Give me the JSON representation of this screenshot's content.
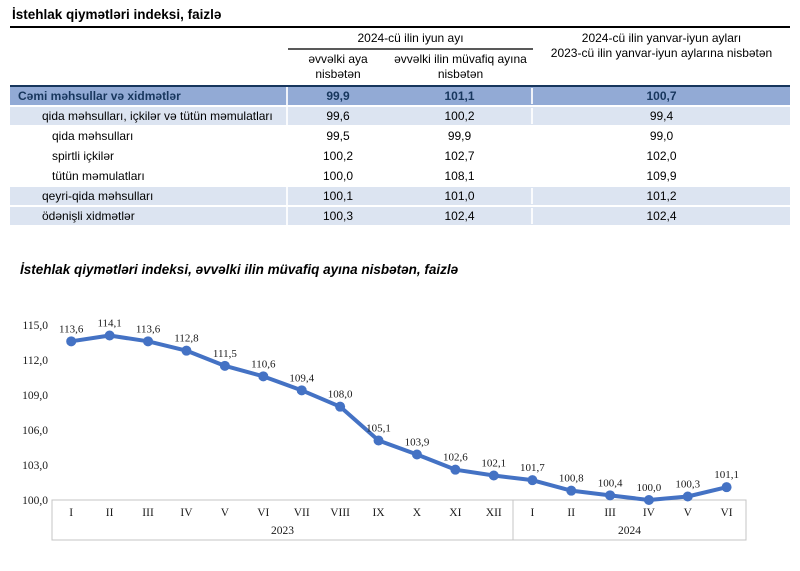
{
  "table": {
    "title": "İstehlak qiymətləri indeksi, faizlə",
    "header": {
      "june_group": "2024-cü ilin iyun ayı",
      "sub_prev_month": "əvvəlki aya nisbətən",
      "sub_prev_year": "əvvəlki ilin müvafiq ayına nisbətən",
      "half_line1": "2024-cü ilin yanvar-iyun ayları",
      "half_line2": "2023-cü ilin yanvar-iyun aylarına nisbətən"
    },
    "rows": [
      {
        "label": "Cəmi məhsullar və xidmətlər",
        "values": [
          "99,9",
          "101,1",
          "100,7"
        ],
        "style": "total",
        "indent": 0
      },
      {
        "label": "qida məhsulları, içkilər və tütün məmulatları",
        "values": [
          "99,6",
          "100,2",
          "99,4"
        ],
        "style": "group",
        "indent": 1
      },
      {
        "label": "qida məhsulları",
        "values": [
          "99,5",
          "99,9",
          "99,0"
        ],
        "style": "plain",
        "indent": 2
      },
      {
        "label": "spirtli içkilər",
        "values": [
          "100,2",
          "102,7",
          "102,0"
        ],
        "style": "plain",
        "indent": 2
      },
      {
        "label": "tütün məmulatları",
        "values": [
          "100,0",
          "108,1",
          "109,9"
        ],
        "style": "plain",
        "indent": 2
      },
      {
        "label": "qeyri-qida məhsulları",
        "values": [
          "100,1",
          "101,0",
          "101,2"
        ],
        "style": "group",
        "indent": 1
      },
      {
        "label": "ödənişli xidmətlər",
        "values": [
          "100,3",
          "102,4",
          "102,4"
        ],
        "style": "group",
        "indent": 1
      }
    ],
    "colors": {
      "total_row_bg": "#92AAD5",
      "group_row_bg": "#DCE4F1",
      "total_text": "#17365D",
      "total_top_border": "#17365D"
    }
  },
  "chart": {
    "title": "İstehlak qiymətləri indeksi, əvvəlki ilin müvafiq ayına nisbətən, faizlə"
  },
  "chart_data": {
    "type": "line",
    "title": "İstehlak qiymətləri indeksi, əvvəlki ilin müvafiq ayına nisbətən, faizlə",
    "x": [
      "I",
      "II",
      "III",
      "IV",
      "V",
      "VI",
      "VII",
      "VIII",
      "IX",
      "X",
      "XI",
      "XII",
      "I",
      "II",
      "III",
      "IV",
      "V",
      "VI"
    ],
    "year_groups": [
      {
        "label": "2023",
        "count": 12
      },
      {
        "label": "2024",
        "count": 6
      }
    ],
    "values": [
      113.6,
      114.1,
      113.6,
      112.8,
      111.5,
      110.6,
      109.4,
      108.0,
      105.1,
      103.9,
      102.6,
      102.1,
      101.7,
      100.8,
      100.4,
      100.0,
      100.3,
      101.1
    ],
    "point_labels": [
      "113,6",
      "114,1",
      "113,6",
      "112,8",
      "111,5",
      "110,6",
      "109,4",
      "108,0",
      "105,1",
      "103,9",
      "102,6",
      "102,1",
      "101,7",
      "100,8",
      "100,4",
      "100,0",
      "100,3",
      "101,1"
    ],
    "y_tick_values": [
      100,
      103,
      106,
      109,
      112,
      115
    ],
    "y_tick_labels": [
      "100,0",
      "103,0",
      "106,0",
      "109,0",
      "112,0",
      "115,0"
    ],
    "ylim": [
      100,
      115
    ],
    "xlabel": "",
    "ylabel": "",
    "grid": false,
    "legend": "none",
    "line_color": "#4472C4",
    "marker": "circle",
    "axis_box_color": "#C4C4C4"
  }
}
